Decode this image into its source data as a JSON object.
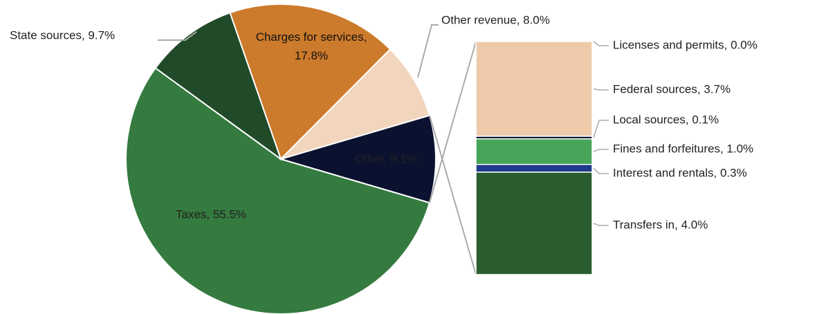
{
  "chart_data": {
    "type": "pie-of-bar",
    "pie": {
      "values": [
        55.5,
        9.7,
        17.8,
        8.0,
        9.1
      ],
      "value_labels": [
        "Taxes, 55.5%",
        "State sources, 9.7%",
        "Charges for services, 17.8%",
        "Other revenue, 8.0%",
        "Other, 9.1%"
      ],
      "colors": [
        "#357a3f",
        "#204a28",
        "#cc7a2b",
        "#f2d5bd",
        "#0b1230"
      ]
    },
    "bar": {
      "values": [
        0.0,
        3.7,
        0.1,
        1.0,
        0.3,
        4.0
      ],
      "value_labels": [
        "Licenses and permits, 0.0%",
        "Federal sources, 3.7%",
        "Local sources, 0.1%",
        "Fines and forfeitures, 1.0%",
        "Interest and rentals, 0.3%",
        "Transfers in, 4.0%"
      ],
      "colors": [
        "#efcaaa",
        "#efcaaa",
        "#0b1230",
        "#47a55a",
        "#1f3a8a",
        "#2a5e31"
      ]
    }
  }
}
